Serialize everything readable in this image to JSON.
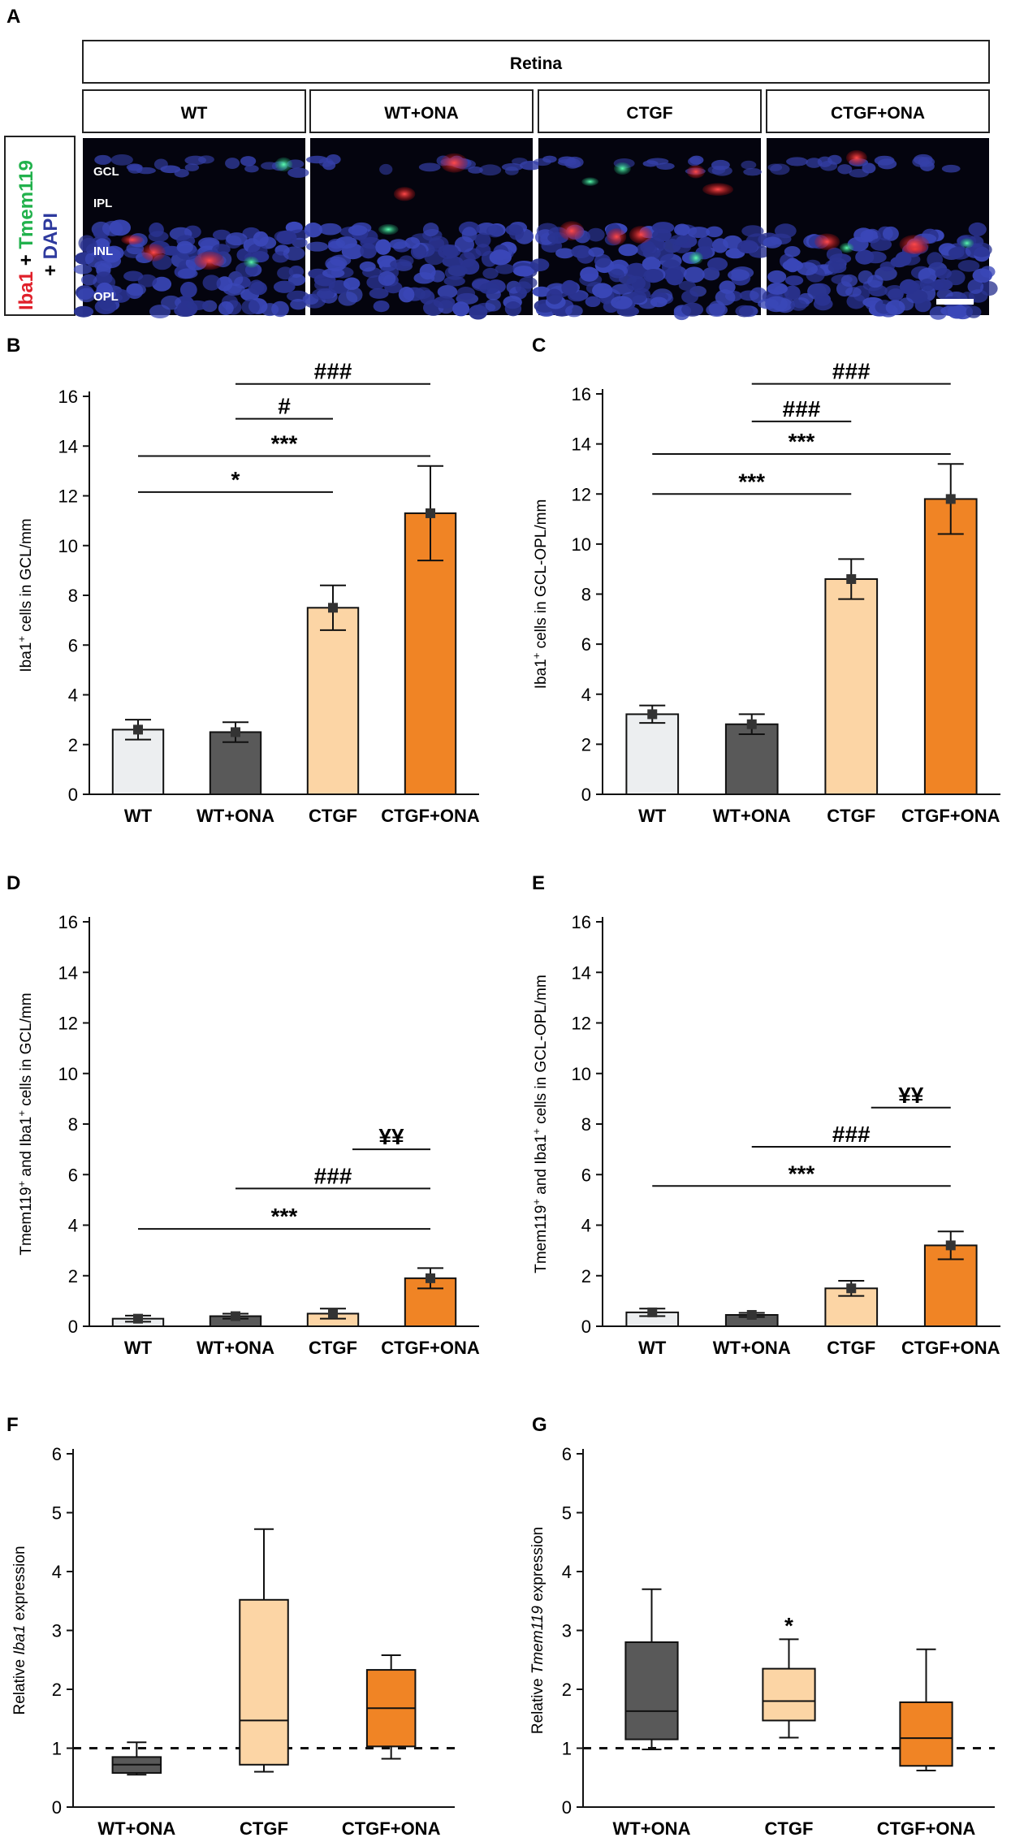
{
  "figure": {
    "panel_a": {
      "letter": "A",
      "tissue_header": "Retina",
      "columns": [
        "WT",
        "WT+ONA",
        "CTGF",
        "CTGF+ONA"
      ],
      "layers": [
        "GCL",
        "IPL",
        "INL",
        "OPL"
      ],
      "side_label": {
        "iba1": "Iba1",
        "plus1": " + ",
        "tmem": "Tmem119",
        "plus2": "+ ",
        "dapi": "DAPI"
      },
      "colors": {
        "iba1": "#e0202a",
        "tmem": "#21b14c",
        "dapi": "#2e3a9e"
      }
    },
    "colors": {
      "WT": "#eceef0",
      "WT+ONA": "#595959",
      "CTGF": "#fcd5a5",
      "CTGF+ONA": "#f08425"
    }
  },
  "chart_data": [
    {
      "id": "B",
      "type": "bar",
      "letter": "B",
      "categories": [
        "WT",
        "WT+ONA",
        "CTGF",
        "CTGF+ONA"
      ],
      "values": [
        2.6,
        2.5,
        7.5,
        11.3
      ],
      "errors": [
        0.4,
        0.4,
        0.9,
        1.9
      ],
      "ylabel_main": "Iba1",
      "ylabel_sup": "+",
      "ylabel_rest": " cells in GCL/mm",
      "ylim": [
        0,
        16
      ],
      "yticks": [
        0,
        2,
        4,
        6,
        8,
        10,
        12,
        14,
        16
      ],
      "annotations": [
        {
          "from": 0,
          "to": 2,
          "y": 12.15,
          "label": "*"
        },
        {
          "from": 0,
          "to": 3,
          "y": 13.6,
          "label": "***"
        },
        {
          "from": 1,
          "to": 2,
          "y": 15.1,
          "label": "#"
        },
        {
          "from": 1,
          "to": 3,
          "y": 16.5,
          "label": "###"
        }
      ]
    },
    {
      "id": "C",
      "type": "bar",
      "letter": "C",
      "categories": [
        "WT",
        "WT+ONA",
        "CTGF",
        "CTGF+ONA"
      ],
      "values": [
        3.2,
        2.8,
        8.6,
        11.8
      ],
      "errors": [
        0.35,
        0.4,
        0.8,
        1.4
      ],
      "ylabel_main": "Iba1",
      "ylabel_sup": "+",
      "ylabel_rest": " cells in GCL-OPL/mm",
      "ylim": [
        0,
        16
      ],
      "yticks": [
        0,
        2,
        4,
        6,
        8,
        10,
        12,
        14,
        16
      ],
      "annotations": [
        {
          "from": 0,
          "to": 2,
          "y": 12.0,
          "label": "***"
        },
        {
          "from": 0,
          "to": 3,
          "y": 13.6,
          "label": "***"
        },
        {
          "from": 1,
          "to": 2,
          "y": 14.9,
          "label": "###"
        },
        {
          "from": 1,
          "to": 3,
          "y": 16.4,
          "label": "###"
        }
      ]
    },
    {
      "id": "D",
      "type": "bar",
      "letter": "D",
      "categories": [
        "WT",
        "WT+ONA",
        "CTGF",
        "CTGF+ONA"
      ],
      "values": [
        0.3,
        0.4,
        0.5,
        1.9
      ],
      "errors": [
        0.12,
        0.1,
        0.2,
        0.4
      ],
      "ylabel_main": "Tmem119",
      "ylabel_sup": "+",
      "ylabel_mid": " and Iba1",
      "ylabel_sup2": "+",
      "ylabel_rest": " cells in GCL/mm",
      "ylim": [
        0,
        16
      ],
      "yticks": [
        0,
        2,
        4,
        6,
        8,
        10,
        12,
        14,
        16
      ],
      "annotations": [
        {
          "from": 0,
          "to": 3,
          "y": 3.85,
          "label": "***"
        },
        {
          "from": 1,
          "to": 3,
          "y": 5.45,
          "label": "###"
        },
        {
          "from": 2.2,
          "to": 3,
          "y": 7.0,
          "label": "¥¥"
        }
      ]
    },
    {
      "id": "E",
      "type": "bar",
      "letter": "E",
      "categories": [
        "WT",
        "WT+ONA",
        "CTGF",
        "CTGF+ONA"
      ],
      "values": [
        0.55,
        0.45,
        1.5,
        3.2
      ],
      "errors": [
        0.15,
        0.08,
        0.3,
        0.55
      ],
      "ylabel_main": "Tmem119",
      "ylabel_sup": "+",
      "ylabel_mid": " and Iba1",
      "ylabel_sup2": "+",
      "ylabel_rest": " cells in GCL-OPL/mm",
      "ylim": [
        0,
        16
      ],
      "yticks": [
        0,
        2,
        4,
        6,
        8,
        10,
        12,
        14,
        16
      ],
      "annotations": [
        {
          "from": 0,
          "to": 3,
          "y": 5.55,
          "label": "***"
        },
        {
          "from": 1,
          "to": 3,
          "y": 7.1,
          "label": "###"
        },
        {
          "from": 2.2,
          "to": 3,
          "y": 8.65,
          "label": "¥¥"
        }
      ]
    },
    {
      "id": "F",
      "type": "box",
      "letter": "F",
      "categories": [
        "WT+ONA",
        "CTGF",
        "CTGF+ONA"
      ],
      "boxes": [
        {
          "min": 0.55,
          "q1": 0.58,
          "median": 0.72,
          "q3": 0.85,
          "max": 1.1
        },
        {
          "min": 0.6,
          "q1": 0.72,
          "median": 1.47,
          "q3": 3.52,
          "max": 4.72
        },
        {
          "min": 0.82,
          "q1": 1.03,
          "median": 1.68,
          "q3": 2.33,
          "max": 2.58
        }
      ],
      "ylabel_pre": "Relative ",
      "ylabel_italic": "Iba1",
      "ylabel_post": " expression",
      "ylim": [
        0,
        6
      ],
      "yticks": [
        0,
        1,
        2,
        3,
        4,
        5,
        6
      ],
      "reference_line": 1,
      "markers": []
    },
    {
      "id": "G",
      "type": "box",
      "letter": "G",
      "categories": [
        "WT+ONA",
        "CTGF",
        "CTGF+ONA"
      ],
      "boxes": [
        {
          "min": 0.98,
          "q1": 1.15,
          "median": 1.63,
          "q3": 2.8,
          "max": 3.7
        },
        {
          "min": 1.18,
          "q1": 1.47,
          "median": 1.8,
          "q3": 2.35,
          "max": 2.85
        },
        {
          "min": 0.62,
          "q1": 0.7,
          "median": 1.17,
          "q3": 1.78,
          "max": 2.68
        }
      ],
      "ylabel_pre": "Relative ",
      "ylabel_italic": "Tmem119",
      "ylabel_post": " expression",
      "ylim": [
        0,
        6
      ],
      "yticks": [
        0,
        1,
        2,
        3,
        4,
        5,
        6
      ],
      "reference_line": 1,
      "markers": [
        {
          "index": 1,
          "value": 3.2,
          "label": "*"
        }
      ]
    }
  ]
}
